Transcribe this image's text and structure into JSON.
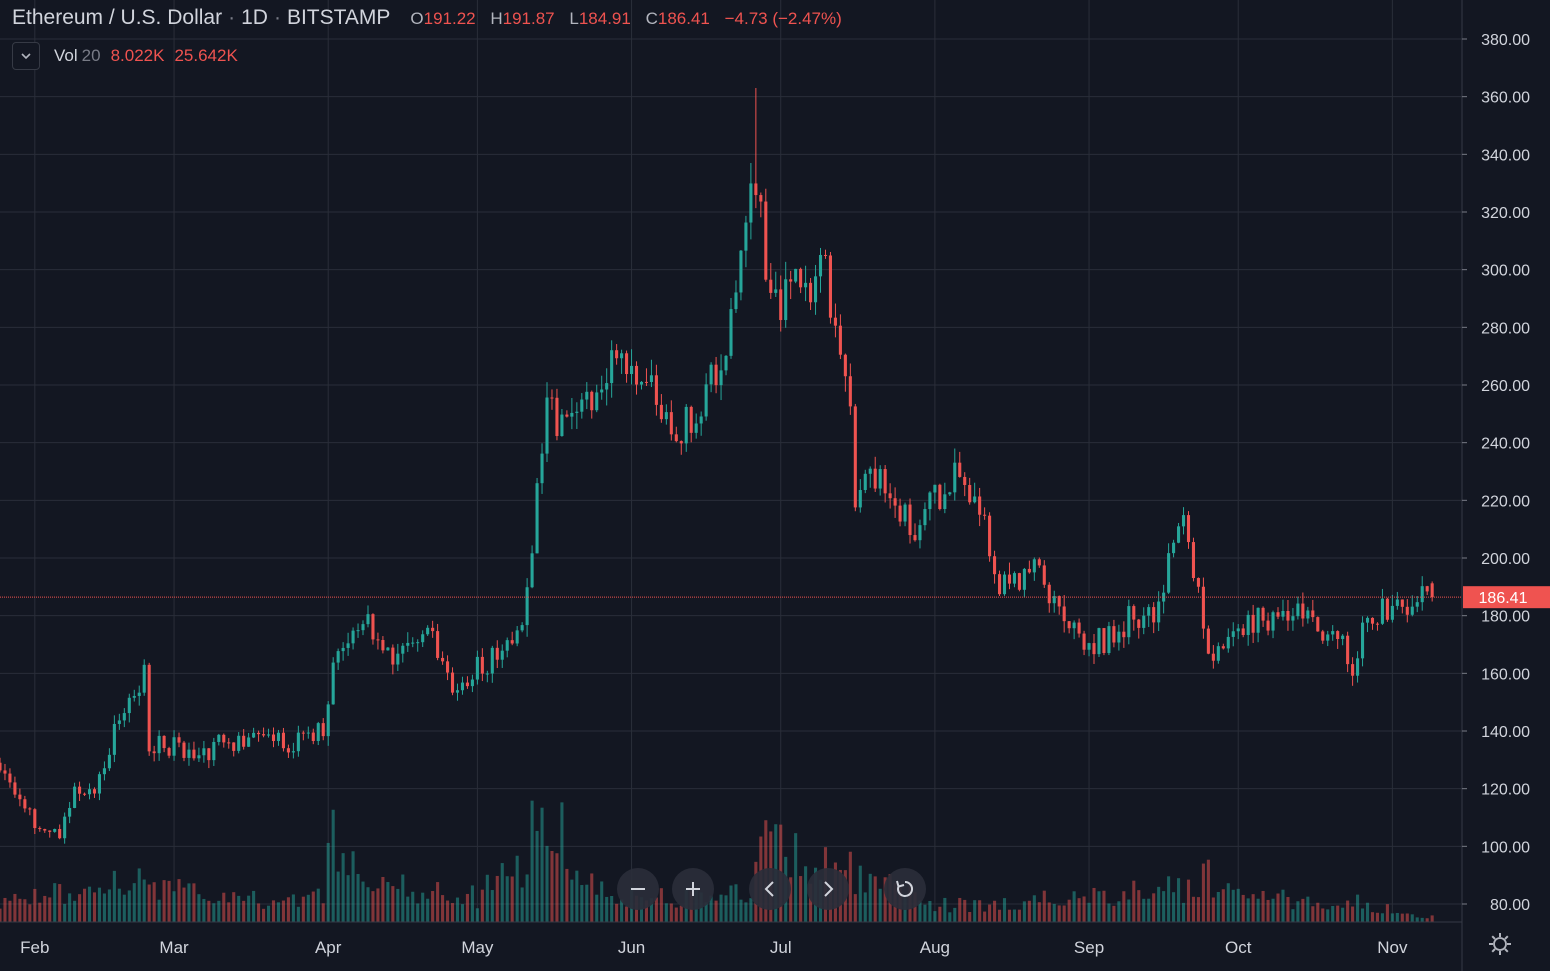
{
  "header": {
    "symbol": "Ethereum / U.S. Dollar",
    "interval": "1D",
    "exchange": "BITSTAMP",
    "open_label": "O",
    "open": "191.22",
    "high_label": "H",
    "high": "191.87",
    "low_label": "L",
    "low": "184.91",
    "close_label": "C",
    "close": "186.41",
    "change": "−4.73 (−2.47%)"
  },
  "volume_indicator": {
    "label": "Vol",
    "length": "20",
    "value": "8.022K",
    "ma_value": "25.642K"
  },
  "price_axis": {
    "ticks": [
      "380.00",
      "360.00",
      "340.00",
      "320.00",
      "300.00",
      "280.00",
      "260.00",
      "240.00",
      "220.00",
      "200.00",
      "180.00",
      "160.00",
      "140.00",
      "120.00",
      "100.00",
      "80.00"
    ],
    "last_price_label": "186.41"
  },
  "toolbar": {
    "zoom_out": "zoom-out-icon",
    "zoom_in": "zoom-in-icon",
    "scroll_left": "chevron-left-icon",
    "scroll_right": "chevron-right-icon",
    "reset": "reset-icon",
    "settings": "gear-icon"
  },
  "colors": {
    "background": "#131722",
    "up": "#26a69a",
    "down": "#ef5350",
    "grid": "#2a2e39",
    "text": "#d1d4dc",
    "price_line": "#ef5350"
  },
  "chart_data": {
    "type": "candlestick",
    "title": "Ethereum / U.S. Dollar · 1D · BITSTAMP",
    "ylim": [
      75,
      390
    ],
    "x_range": [
      "2019-01-25",
      "2019-11-15"
    ],
    "months": [
      {
        "label": "Feb",
        "date": "2019-02-01"
      },
      {
        "label": "Mar",
        "date": "2019-03-01"
      },
      {
        "label": "Apr",
        "date": "2019-04-01"
      },
      {
        "label": "May",
        "date": "2019-05-01"
      },
      {
        "label": "Jun",
        "date": "2019-06-01"
      },
      {
        "label": "Jul",
        "date": "2019-07-01"
      },
      {
        "label": "Aug",
        "date": "2019-08-01"
      },
      {
        "label": "Sep",
        "date": "2019-09-01"
      },
      {
        "label": "Oct",
        "date": "2019-10-01"
      },
      {
        "label": "Nov",
        "date": "2019-11-01"
      }
    ],
    "close_path": [
      [
        "2019-01-25",
        125
      ],
      [
        "2019-01-28",
        118
      ],
      [
        "2019-02-01",
        108
      ],
      [
        "2019-02-06",
        104
      ],
      [
        "2019-02-09",
        120
      ],
      [
        "2019-02-13",
        121
      ],
      [
        "2019-02-16",
        135
      ],
      [
        "2019-02-18",
        145
      ],
      [
        "2019-02-23",
        160
      ],
      [
        "2019-02-24",
        135
      ],
      [
        "2019-03-01",
        135
      ],
      [
        "2019-03-05",
        130
      ],
      [
        "2019-03-11",
        136
      ],
      [
        "2019-03-18",
        138
      ],
      [
        "2019-03-24",
        135
      ],
      [
        "2019-03-31",
        142
      ],
      [
        "2019-04-02",
        165
      ],
      [
        "2019-04-05",
        172
      ],
      [
        "2019-04-07",
        176
      ],
      [
        "2019-04-09",
        176
      ],
      [
        "2019-04-14",
        165
      ],
      [
        "2019-04-17",
        170
      ],
      [
        "2019-04-20",
        172
      ],
      [
        "2019-04-23",
        170
      ],
      [
        "2019-04-26",
        155
      ],
      [
        "2019-04-30",
        160
      ],
      [
        "2019-05-04",
        165
      ],
      [
        "2019-05-08",
        170
      ],
      [
        "2019-05-10",
        175
      ],
      [
        "2019-05-11",
        195
      ],
      [
        "2019-05-12",
        205
      ],
      [
        "2019-05-13",
        225
      ],
      [
        "2019-05-14",
        240
      ],
      [
        "2019-05-15",
        255
      ],
      [
        "2019-05-17",
        245
      ],
      [
        "2019-05-20",
        255
      ],
      [
        "2019-05-24",
        250
      ],
      [
        "2019-05-29",
        270
      ],
      [
        "2019-06-02",
        262
      ],
      [
        "2019-06-05",
        258
      ],
      [
        "2019-06-10",
        240
      ],
      [
        "2019-06-15",
        255
      ],
      [
        "2019-06-19",
        265
      ],
      [
        "2019-06-22",
        300
      ],
      [
        "2019-06-24",
        315
      ],
      [
        "2019-06-26",
        335
      ],
      [
        "2019-06-28",
        300
      ],
      [
        "2019-07-01",
        290
      ],
      [
        "2019-07-03",
        300
      ],
      [
        "2019-07-07",
        288
      ],
      [
        "2019-07-09",
        310
      ],
      [
        "2019-07-11",
        290
      ],
      [
        "2019-07-13",
        270
      ],
      [
        "2019-07-15",
        250
      ],
      [
        "2019-07-16",
        215
      ],
      [
        "2019-07-17",
        225
      ],
      [
        "2019-07-21",
        225
      ],
      [
        "2019-07-25",
        215
      ],
      [
        "2019-07-28",
        210
      ],
      [
        "2019-08-01",
        220
      ],
      [
        "2019-08-05",
        228
      ],
      [
        "2019-08-08",
        225
      ],
      [
        "2019-08-11",
        210
      ],
      [
        "2019-08-14",
        190
      ],
      [
        "2019-08-18",
        190
      ],
      [
        "2019-08-21",
        195
      ],
      [
        "2019-08-27",
        180
      ],
      [
        "2019-08-31",
        170
      ],
      [
        "2019-09-05",
        172
      ],
      [
        "2019-09-10",
        180
      ],
      [
        "2019-09-15",
        180
      ],
      [
        "2019-09-18",
        210
      ],
      [
        "2019-09-20",
        220
      ],
      [
        "2019-09-24",
        175
      ],
      [
        "2019-09-25",
        165
      ],
      [
        "2019-09-30",
        175
      ],
      [
        "2019-10-05",
        178
      ],
      [
        "2019-10-10",
        180
      ],
      [
        "2019-10-15",
        185
      ],
      [
        "2019-10-18",
        175
      ],
      [
        "2019-10-22",
        170
      ],
      [
        "2019-10-24",
        160
      ],
      [
        "2019-10-26",
        178
      ],
      [
        "2019-10-30",
        182
      ],
      [
        "2019-11-03",
        182
      ],
      [
        "2019-11-07",
        190
      ],
      [
        "2019-11-09",
        186.41
      ]
    ],
    "peak": {
      "date": "2019-06-26",
      "high": 363
    },
    "volume_ylim": [
      0,
      280000
    ],
    "volume_profile": [
      [
        "2019-01-25",
        25000
      ],
      [
        "2019-02-15",
        40000
      ],
      [
        "2019-02-20",
        55000
      ],
      [
        "2019-03-10",
        25000
      ],
      [
        "2019-03-31",
        30000
      ],
      [
        "2019-04-02",
        120000
      ],
      [
        "2019-04-10",
        45000
      ],
      [
        "2019-05-01",
        30000
      ],
      [
        "2019-05-11",
        80000
      ],
      [
        "2019-05-14",
        150000
      ],
      [
        "2019-05-17",
        120000
      ],
      [
        "2019-05-25",
        35000
      ],
      [
        "2019-06-10",
        30000
      ],
      [
        "2019-06-25",
        40000
      ],
      [
        "2019-06-27",
        90000
      ],
      [
        "2019-07-15",
        60000
      ],
      [
        "2019-08-01",
        20000
      ],
      [
        "2019-08-20",
        25000
      ],
      [
        "2019-09-20",
        40000
      ],
      [
        "2019-09-24",
        60000
      ],
      [
        "2019-10-01",
        30000
      ],
      [
        "2019-10-24",
        25000
      ],
      [
        "2019-11-09",
        5000
      ]
    ],
    "last_volume": 8022,
    "volume_ma_20": 25642
  }
}
